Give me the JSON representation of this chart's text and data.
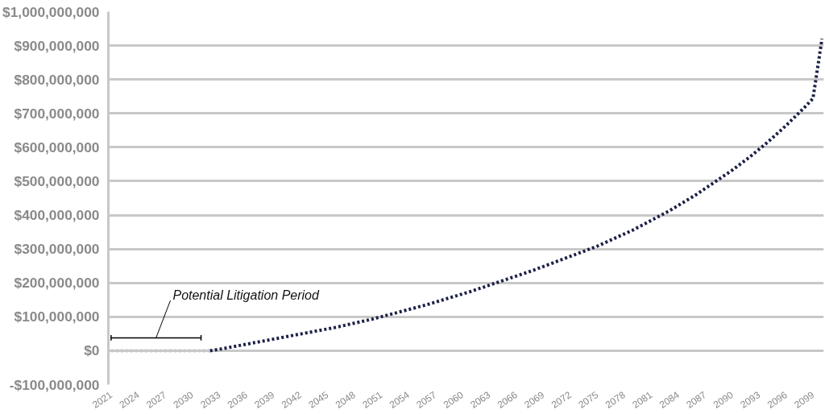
{
  "chart_data": {
    "type": "line",
    "xlim": [
      2020.7,
      2100.2
    ],
    "xticks": [
      2021,
      2024,
      2027,
      2030,
      2033,
      2036,
      2039,
      2042,
      2045,
      2048,
      2051,
      2054,
      2057,
      2060,
      2063,
      2066,
      2069,
      2072,
      2075,
      2078,
      2081,
      2084,
      2087,
      2090,
      2093,
      2096,
      2099
    ],
    "ylim": [
      -100000000,
      1000000000
    ],
    "yticks": [
      {
        "value": -100000000,
        "label": "-$100,000,000"
      },
      {
        "value": 0,
        "label": "$0"
      },
      {
        "value": 100000000,
        "label": "$100,000,000"
      },
      {
        "value": 200000000,
        "label": "$200,000,000"
      },
      {
        "value": 300000000,
        "label": "$300,000,000"
      },
      {
        "value": 400000000,
        "label": "$400,000,000"
      },
      {
        "value": 500000000,
        "label": "$500,000,000"
      },
      {
        "value": 600000000,
        "label": "$600,000,000"
      },
      {
        "value": 700000000,
        "label": "$700,000,000"
      },
      {
        "value": 800000000,
        "label": "$800,000,000"
      },
      {
        "value": 900000000,
        "label": "$900,000,000"
      },
      {
        "value": 1000000000,
        "label": "$1,000,000,000"
      }
    ],
    "grid": "y",
    "line_style": "dotted",
    "annotations": [
      {
        "text": "Potential Litigation Period",
        "x": 2026,
        "y": 38000000
      }
    ],
    "series": [
      {
        "color": "#000000",
        "line_style": "solid",
        "x": [
          2021,
          2031
        ],
        "values": [
          38000000,
          38000000
        ],
        "errors": [
          8000000,
          8000000
        ]
      },
      {
        "color": "#c8c8cc",
        "x": [
          2021,
          2022,
          2023,
          2024,
          2025,
          2026,
          2027,
          2028,
          2029,
          2030,
          2031,
          2032
        ],
        "values": [
          0,
          0,
          0,
          0,
          0,
          0,
          0,
          0,
          0,
          0,
          0,
          0
        ]
      },
      {
        "color": "#1c2147",
        "x": [
          2032,
          2033,
          2034,
          2035,
          2036,
          2037,
          2038,
          2039,
          2040,
          2041,
          2042,
          2043,
          2044,
          2045,
          2046,
          2047,
          2048,
          2049,
          2050,
          2051,
          2052,
          2053,
          2054,
          2055,
          2056,
          2057,
          2058,
          2059,
          2060,
          2061,
          2062,
          2063,
          2064,
          2065,
          2066,
          2067,
          2068,
          2069,
          2070,
          2071,
          2072,
          2073,
          2074,
          2075,
          2076,
          2077,
          2078,
          2079,
          2080,
          2081,
          2082,
          2083,
          2084,
          2085,
          2086,
          2087,
          2088,
          2089,
          2090,
          2091,
          2092,
          2093,
          2094,
          2095,
          2096,
          2097,
          2098,
          2099,
          2100
        ],
        "values": [
          0,
          4000000,
          9000000,
          14000000,
          19000000,
          24000000,
          29000000,
          34000000,
          39000000,
          44000000,
          49000000,
          54000000,
          59000000,
          64000000,
          69000000,
          75000000,
          81000000,
          87000000,
          93000000,
          100000000,
          107000000,
          114000000,
          121000000,
          128000000,
          135000000,
          143000000,
          151000000,
          159000000,
          167000000,
          175000000,
          184000000,
          193000000,
          202000000,
          211000000,
          220000000,
          229000000,
          238000000,
          248000000,
          258000000,
          268000000,
          278000000,
          288000000,
          298000000,
          308000000,
          320000000,
          332000000,
          344000000,
          356000000,
          370000000,
          384000000,
          398000000,
          412000000,
          428000000,
          444000000,
          460000000,
          478000000,
          496000000,
          514000000,
          532000000,
          552000000,
          572000000,
          594000000,
          616000000,
          640000000,
          664000000,
          690000000,
          716000000,
          744000000,
          920000000
        ]
      }
    ]
  }
}
